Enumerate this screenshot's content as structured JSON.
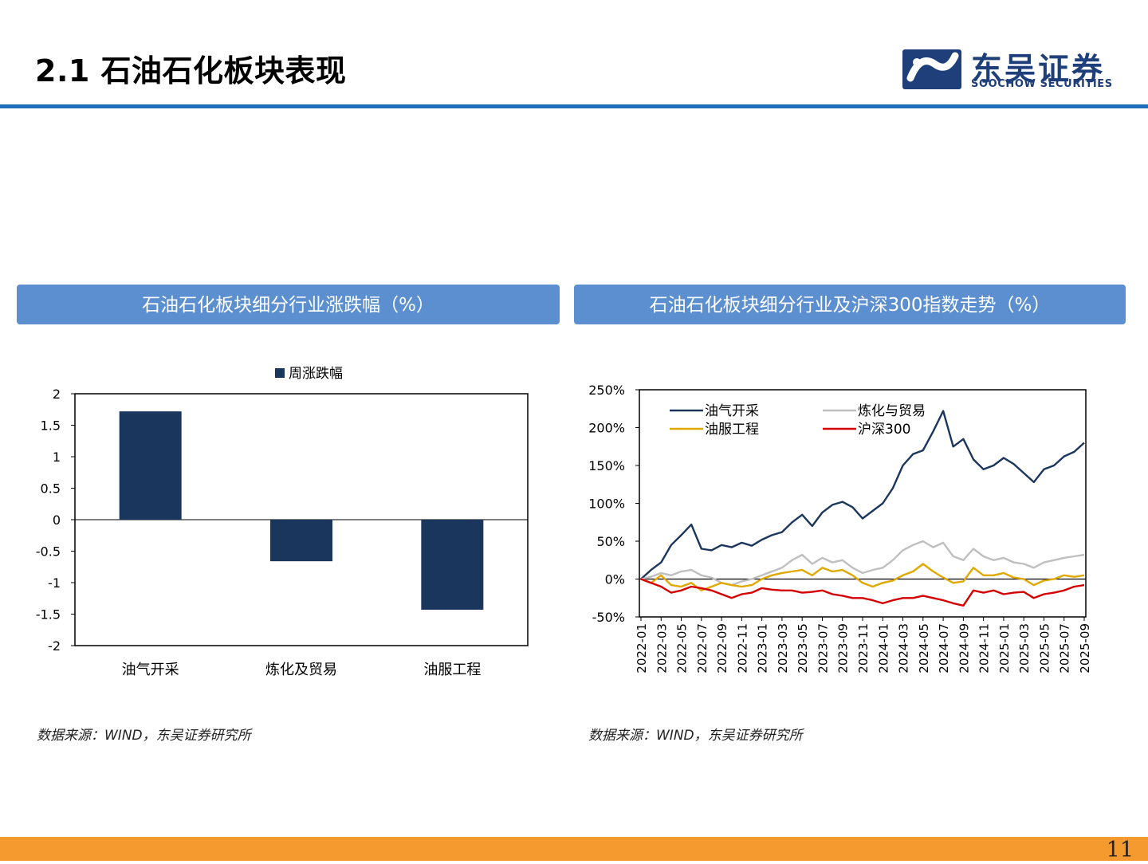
{
  "page": {
    "title": "2.1 石油石化板块表现",
    "logo_cn": "东吴证券",
    "logo_en": "SOOCHOW SECURITIES",
    "page_number": "11"
  },
  "colors": {
    "header_rule": "#1d6fba",
    "panel_header": "#5b8fd0",
    "footer_bar": "#f59a2f",
    "bar_fill": "#1b365d",
    "logo": "#1e3f7a"
  },
  "left_panel": {
    "header": "石油石化板块细分行业涨跌幅（%）",
    "source": "数据来源：WIND，东吴证券研究所"
  },
  "right_panel": {
    "header": "石油石化板块细分行业及沪深300指数走势（%）",
    "source": "数据来源：WIND，东吴证券研究所"
  },
  "chart_data": [
    {
      "type": "bar",
      "categories": [
        "油气开采",
        "炼化及贸易",
        "油服工程"
      ],
      "series": [
        {
          "name": "周涨跌幅",
          "values": [
            1.72,
            -0.66,
            -1.43
          ],
          "color": "#1b365d"
        }
      ],
      "ylim": [
        -2,
        2
      ],
      "yticks": [
        2,
        1.5,
        1,
        0.5,
        0,
        -0.5,
        -1,
        -1.5,
        -2
      ],
      "ytick_labels": [
        "2",
        "1.5",
        "1",
        "0.5",
        "0",
        "-0.5",
        "-1",
        "-1.5",
        "-2"
      ],
      "legend": "top-center",
      "grid": false
    },
    {
      "type": "line",
      "x_range": [
        "2022-01",
        "2025-09"
      ],
      "x_ticks": [
        "2022-01",
        "2022-03",
        "2022-05",
        "2022-07",
        "2022-09",
        "2022-11",
        "2023-01",
        "2023-03",
        "2023-05",
        "2023-07",
        "2023-09",
        "2023-11",
        "2024-01",
        "2024-03",
        "2024-05",
        "2024-07",
        "2024-09",
        "2024-11",
        "2025-01",
        "2025-03",
        "2025-05",
        "2025-07",
        "2025-09"
      ],
      "ylim": [
        -50,
        250
      ],
      "yticks": [
        250,
        200,
        150,
        100,
        50,
        0,
        -50
      ],
      "ytick_labels": [
        "250%",
        "200%",
        "150%",
        "100%",
        "50%",
        "0%",
        "-50%"
      ],
      "legend": "top-left",
      "grid": false,
      "series": [
        {
          "name": "油气开采",
          "color": "#1b365d",
          "points": [
            [
              "2022-01",
              0
            ],
            [
              "2022-02",
              12
            ],
            [
              "2022-03",
              22
            ],
            [
              "2022-04",
              45
            ],
            [
              "2022-05",
              58
            ],
            [
              "2022-06",
              72
            ],
            [
              "2022-07",
              40
            ],
            [
              "2022-08",
              38
            ],
            [
              "2022-09",
              45
            ],
            [
              "2022-10",
              42
            ],
            [
              "2022-11",
              48
            ],
            [
              "2022-12",
              44
            ],
            [
              "2023-01",
              52
            ],
            [
              "2023-02",
              58
            ],
            [
              "2023-03",
              62
            ],
            [
              "2023-04",
              75
            ],
            [
              "2023-05",
              85
            ],
            [
              "2023-06",
              70
            ],
            [
              "2023-07",
              88
            ],
            [
              "2023-08",
              98
            ],
            [
              "2023-09",
              102
            ],
            [
              "2023-10",
              95
            ],
            [
              "2023-11",
              80
            ],
            [
              "2023-12",
              90
            ],
            [
              "2024-01",
              100
            ],
            [
              "2024-02",
              120
            ],
            [
              "2024-03",
              150
            ],
            [
              "2024-04",
              165
            ],
            [
              "2024-05",
              170
            ],
            [
              "2024-06",
              195
            ],
            [
              "2024-07",
              222
            ],
            [
              "2024-08",
              175
            ],
            [
              "2024-09",
              185
            ],
            [
              "2024-10",
              158
            ],
            [
              "2024-11",
              145
            ],
            [
              "2024-12",
              150
            ],
            [
              "2025-01",
              160
            ],
            [
              "2025-02",
              152
            ],
            [
              "2025-03",
              140
            ],
            [
              "2025-04",
              128
            ],
            [
              "2025-05",
              145
            ],
            [
              "2025-06",
              150
            ],
            [
              "2025-07",
              162
            ],
            [
              "2025-08",
              168
            ],
            [
              "2025-09",
              180
            ]
          ]
        },
        {
          "name": "炼化与贸易",
          "color": "#bfbfbf",
          "points": [
            [
              "2022-01",
              0
            ],
            [
              "2022-02",
              3
            ],
            [
              "2022-03",
              8
            ],
            [
              "2022-04",
              5
            ],
            [
              "2022-05",
              10
            ],
            [
              "2022-06",
              12
            ],
            [
              "2022-07",
              5
            ],
            [
              "2022-08",
              2
            ],
            [
              "2022-09",
              -5
            ],
            [
              "2022-10",
              -8
            ],
            [
              "2022-11",
              -3
            ],
            [
              "2022-12",
              0
            ],
            [
              "2023-01",
              5
            ],
            [
              "2023-02",
              10
            ],
            [
              "2023-03",
              15
            ],
            [
              "2023-04",
              25
            ],
            [
              "2023-05",
              32
            ],
            [
              "2023-06",
              20
            ],
            [
              "2023-07",
              28
            ],
            [
              "2023-08",
              22
            ],
            [
              "2023-09",
              25
            ],
            [
              "2023-10",
              15
            ],
            [
              "2023-11",
              8
            ],
            [
              "2023-12",
              12
            ],
            [
              "2024-01",
              15
            ],
            [
              "2024-02",
              25
            ],
            [
              "2024-03",
              38
            ],
            [
              "2024-04",
              45
            ],
            [
              "2024-05",
              50
            ],
            [
              "2024-06",
              42
            ],
            [
              "2024-07",
              48
            ],
            [
              "2024-08",
              30
            ],
            [
              "2024-09",
              25
            ],
            [
              "2024-10",
              40
            ],
            [
              "2024-11",
              30
            ],
            [
              "2024-12",
              25
            ],
            [
              "2025-01",
              28
            ],
            [
              "2025-02",
              22
            ],
            [
              "2025-03",
              20
            ],
            [
              "2025-04",
              15
            ],
            [
              "2025-05",
              22
            ],
            [
              "2025-06",
              25
            ],
            [
              "2025-07",
              28
            ],
            [
              "2025-08",
              30
            ],
            [
              "2025-09",
              32
            ]
          ]
        },
        {
          "name": "油服工程",
          "color": "#e0a800",
          "points": [
            [
              "2022-01",
              0
            ],
            [
              "2022-02",
              -5
            ],
            [
              "2022-03",
              5
            ],
            [
              "2022-04",
              -8
            ],
            [
              "2022-05",
              -10
            ],
            [
              "2022-06",
              -5
            ],
            [
              "2022-07",
              -15
            ],
            [
              "2022-08",
              -10
            ],
            [
              "2022-09",
              -5
            ],
            [
              "2022-10",
              -8
            ],
            [
              "2022-11",
              -10
            ],
            [
              "2022-12",
              -8
            ],
            [
              "2023-01",
              0
            ],
            [
              "2023-02",
              5
            ],
            [
              "2023-03",
              8
            ],
            [
              "2023-04",
              10
            ],
            [
              "2023-05",
              12
            ],
            [
              "2023-06",
              5
            ],
            [
              "2023-07",
              15
            ],
            [
              "2023-08",
              10
            ],
            [
              "2023-09",
              12
            ],
            [
              "2023-10",
              5
            ],
            [
              "2023-11",
              -5
            ],
            [
              "2023-12",
              -10
            ],
            [
              "2024-01",
              -5
            ],
            [
              "2024-02",
              -2
            ],
            [
              "2024-03",
              5
            ],
            [
              "2024-04",
              10
            ],
            [
              "2024-05",
              20
            ],
            [
              "2024-06",
              10
            ],
            [
              "2024-07",
              2
            ],
            [
              "2024-08",
              -5
            ],
            [
              "2024-09",
              -3
            ],
            [
              "2024-10",
              15
            ],
            [
              "2024-11",
              5
            ],
            [
              "2024-12",
              5
            ],
            [
              "2025-01",
              8
            ],
            [
              "2025-02",
              2
            ],
            [
              "2025-03",
              0
            ],
            [
              "2025-04",
              -8
            ],
            [
              "2025-05",
              -2
            ],
            [
              "2025-06",
              0
            ],
            [
              "2025-07",
              5
            ],
            [
              "2025-08",
              3
            ],
            [
              "2025-09",
              5
            ]
          ]
        },
        {
          "name": "沪深300",
          "color": "#d40000",
          "points": [
            [
              "2022-01",
              0
            ],
            [
              "2022-02",
              -5
            ],
            [
              "2022-03",
              -10
            ],
            [
              "2022-04",
              -18
            ],
            [
              "2022-05",
              -15
            ],
            [
              "2022-06",
              -10
            ],
            [
              "2022-07",
              -12
            ],
            [
              "2022-08",
              -15
            ],
            [
              "2022-09",
              -20
            ],
            [
              "2022-10",
              -25
            ],
            [
              "2022-11",
              -20
            ],
            [
              "2022-12",
              -18
            ],
            [
              "2023-01",
              -12
            ],
            [
              "2023-02",
              -14
            ],
            [
              "2023-03",
              -15
            ],
            [
              "2023-04",
              -15
            ],
            [
              "2023-05",
              -18
            ],
            [
              "2023-06",
              -17
            ],
            [
              "2023-07",
              -15
            ],
            [
              "2023-08",
              -20
            ],
            [
              "2023-09",
              -22
            ],
            [
              "2023-10",
              -25
            ],
            [
              "2023-11",
              -25
            ],
            [
              "2023-12",
              -28
            ],
            [
              "2024-01",
              -32
            ],
            [
              "2024-02",
              -28
            ],
            [
              "2024-03",
              -25
            ],
            [
              "2024-04",
              -25
            ],
            [
              "2024-05",
              -22
            ],
            [
              "2024-06",
              -25
            ],
            [
              "2024-07",
              -28
            ],
            [
              "2024-08",
              -32
            ],
            [
              "2024-09",
              -35
            ],
            [
              "2024-10",
              -15
            ],
            [
              "2024-11",
              -18
            ],
            [
              "2024-12",
              -15
            ],
            [
              "2025-01",
              -20
            ],
            [
              "2025-02",
              -18
            ],
            [
              "2025-03",
              -17
            ],
            [
              "2025-04",
              -25
            ],
            [
              "2025-05",
              -20
            ],
            [
              "2025-06",
              -18
            ],
            [
              "2025-07",
              -15
            ],
            [
              "2025-08",
              -10
            ],
            [
              "2025-09",
              -8
            ]
          ]
        }
      ]
    }
  ]
}
